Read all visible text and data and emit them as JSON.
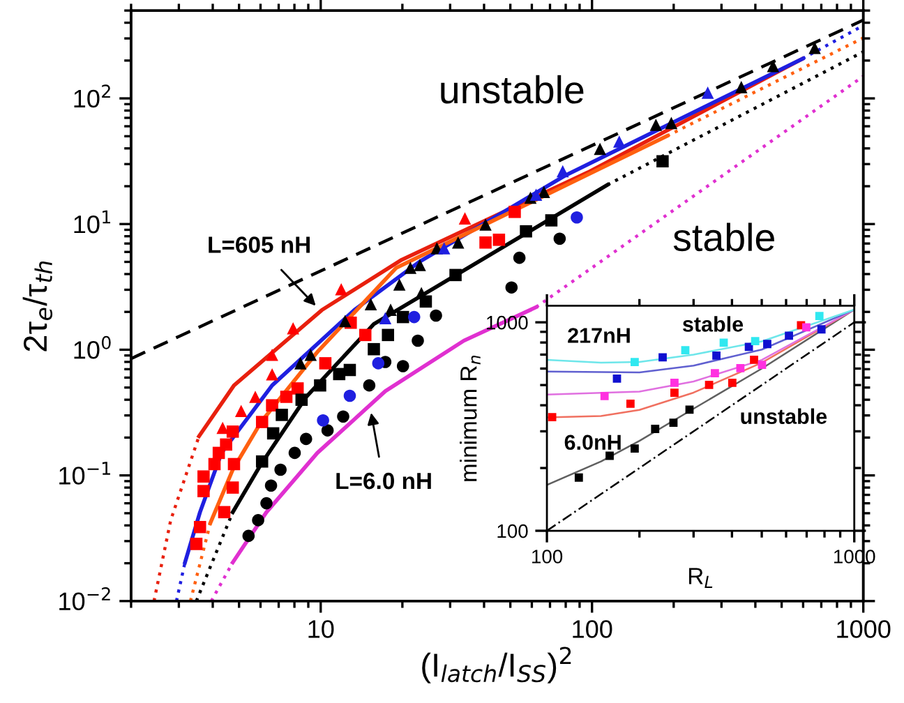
{
  "chart_data": [
    {
      "type": "scatter",
      "xlabel": "(I$_{latch}$/I$_{SS}$)$^{2}$",
      "ylabel": "2τ$_{e}$/τ$_{th}$",
      "log": "xy",
      "xlim": [
        2,
        1000
      ],
      "ylim": [
        0.01,
        500
      ],
      "xticks": [
        10,
        100,
        1000
      ],
      "yticks": [
        {
          "value": 0.01,
          "label": "10$^{−2}$"
        },
        {
          "value": 0.1,
          "label": "10$^{−1}$"
        },
        {
          "value": 1,
          "label": "10$^{0}$"
        },
        {
          "value": 10,
          "label": "10$^{1}$"
        },
        {
          "value": 100,
          "label": "10$^{2}$"
        }
      ],
      "annotations": [
        "unstable",
        "stable",
        {
          "text": "L=605 nH",
          "x": 9.7,
          "y": 2.18
        },
        {
          "text": "L=6.0 nH",
          "x": 15.3,
          "y": 0.326
        }
      ],
      "series": [
        {
          "type": "line",
          "line_style": "dashed",
          "color": "#000000",
          "x": [
            2,
            1000
          ],
          "values": [
            0.85,
            420
          ]
        },
        {
          "type": "line",
          "line_style": "solid",
          "color": "#e8200e",
          "x": [
            3.56,
            4.79,
            10.1,
            19.9,
            96.6,
            597
          ],
          "values": [
            0.205,
            0.52,
            2.07,
            5.2,
            25.8,
            207
          ]
        },
        {
          "type": "line",
          "line_style": "dotted",
          "color": "#e8200e",
          "x": [
            2.43,
            2.8,
            3.56
          ],
          "values": [
            0.01,
            0.044,
            0.205
          ]
        },
        {
          "type": "line",
          "line_style": "solid",
          "color": "#1f1fe0",
          "x": [
            3.16,
            3.59,
            4.31,
            6.62,
            13.3,
            23.0,
            79.8,
            597
          ],
          "values": [
            0.0203,
            0.051,
            0.151,
            0.52,
            2.07,
            4.97,
            24.4,
            207
          ]
        },
        {
          "type": "line",
          "line_style": "dotted",
          "color": "#1f1fe0",
          "x": [
            2.94,
            3.16
          ],
          "values": [
            0.01,
            0.0203
          ]
        },
        {
          "type": "line",
          "line_style": "dotted",
          "color": "#1f1fe0",
          "x": [
            597,
            1000
          ],
          "values": [
            207,
            380
          ]
        },
        {
          "type": "line",
          "line_style": "solid",
          "color": "#ff6010",
          "x": [
            3.92,
            4.74,
            6.03,
            9.72,
            19.0,
            189
          ],
          "values": [
            0.0418,
            0.111,
            0.266,
            0.96,
            4.49,
            50.2
          ]
        },
        {
          "type": "line",
          "line_style": "dotted",
          "color": "#ff6010",
          "x": [
            3.31,
            3.92
          ],
          "values": [
            0.01,
            0.0418
          ]
        },
        {
          "type": "line",
          "line_style": "dotted",
          "color": "#ff6010",
          "x": [
            189,
            1000
          ],
          "values": [
            50.2,
            303
          ]
        },
        {
          "type": "line",
          "line_style": "solid",
          "color": "#000000",
          "x": [
            4.74,
            6.03,
            8.83,
            15.7,
            114
          ],
          "values": [
            0.051,
            0.123,
            0.42,
            1.6,
            20.5
          ]
        },
        {
          "type": "line",
          "line_style": "dotted",
          "color": "#000000",
          "x": [
            3.48,
            4.74
          ],
          "values": [
            0.01,
            0.051
          ]
        },
        {
          "type": "line",
          "line_style": "dotted",
          "color": "#000000",
          "x": [
            114,
            1000
          ],
          "values": [
            20.5,
            235
          ]
        },
        {
          "type": "line",
          "line_style": "solid",
          "color": "#e030d0",
          "x": [
            4.74,
            6.31,
            9.72,
            17.3,
            33.7,
            62.2
          ],
          "values": [
            0.0203,
            0.051,
            0.151,
            0.468,
            1.18,
            2.18
          ]
        },
        {
          "type": "line",
          "line_style": "dotted",
          "color": "#e030d0",
          "x": [
            3.95,
            4.74
          ],
          "values": [
            0.01,
            0.0203
          ]
        },
        {
          "type": "line",
          "line_style": "dotted",
          "color": "#e030d0",
          "x": [
            62.2,
            1000
          ],
          "values": [
            2.18,
            150
          ]
        },
        {
          "type": "scatter",
          "marker": "triangle",
          "color": "#ff0000",
          "x": [
            4.35,
            5.09,
            5.74,
            6.62,
            6.62,
            7.91,
            11.9,
            34.0
          ],
          "values": [
            0.239,
            0.326,
            0.422,
            0.637,
            0.91,
            1.48,
            3.03,
            11.1
          ]
        },
        {
          "type": "scatter",
          "marker": "square",
          "color": "#ff0000",
          "x": [
            3.48,
            3.59,
            3.7,
            3.7,
            4.06,
            4.21,
            4.48,
            4.74,
            4.79,
            4.74,
            4.41,
            6.08,
            6.62,
            7.47,
            8.22,
            10.4,
            12.9,
            14.6,
            40.5,
            45.4,
            51.9
          ],
          "values": [
            0.0285,
            0.0388,
            0.098,
            0.075,
            0.123,
            0.151,
            0.176,
            0.223,
            0.123,
            0.08,
            0.051,
            0.266,
            0.361,
            0.422,
            0.492,
            0.78,
            1.64,
            1.31,
            7.13,
            7.5,
            12.5
          ]
        },
        {
          "type": "scatter",
          "marker": "triangle",
          "color": "#000000",
          "x": [
            8.42,
            9.18,
            12.3,
            15.3,
            18.1,
            19.5,
            21.4,
            23.2,
            26.8,
            23.5,
            32.1,
            40.5,
            59.3,
            66.5,
            107,
            172,
            196,
            355,
            465,
            662
          ],
          "values": [
            0.78,
            0.91,
            1.69,
            2.3,
            2.08,
            3.3,
            4.49,
            4.72,
            6.42,
            2.82,
            7.13,
            9.9,
            16.2,
            18.0,
            39.6,
            61.6,
            63.7,
            123,
            181,
            252
          ]
        },
        {
          "type": "scatter",
          "marker": "triangle",
          "color": "#1f1fe0",
          "x": [
            17.3,
            28.5,
            62.2,
            78.0,
            126,
            267
          ],
          "values": [
            1.78,
            6.42,
            17.1,
            26.3,
            45.3,
            111
          ]
        },
        {
          "type": "scatter",
          "marker": "square",
          "color": "#000000",
          "x": [
            6.08,
            6.68,
            7.19,
            8.5,
            9.95,
            11.7,
            12.8,
            15.7,
            17.7,
            20.1,
            24.4,
            31.4,
            57.1,
            70.8,
            182
          ],
          "values": [
            0.129,
            0.216,
            0.303,
            0.4,
            0.52,
            0.64,
            0.69,
            1.01,
            1.31,
            1.82,
            2.42,
            3.93,
            8.75,
            10.7,
            31.6
          ]
        },
        {
          "type": "scatter",
          "marker": "circle",
          "color": "#000000",
          "x": [
            5.42,
            5.88,
            6.31,
            6.56,
            7.11,
            8.02,
            8.83,
            10.6,
            12.1,
            15.1,
            17.3,
            20.1,
            22.8,
            26.6,
            50.5,
            54.0,
            76.0
          ],
          "values": [
            0.033,
            0.044,
            0.06,
            0.083,
            0.111,
            0.151,
            0.195,
            0.228,
            0.294,
            0.52,
            0.8,
            0.74,
            1.18,
            1.87,
            3.13,
            5.39,
            7.65
          ]
        },
        {
          "type": "scatter",
          "marker": "circle",
          "color": "#1f1fe0",
          "x": [
            10.2,
            12.8,
            16.3,
            22.1,
            87.9
          ],
          "values": [
            0.274,
            0.43,
            0.78,
            1.82,
            11.3
          ]
        }
      ]
    },
    {
      "type": "scatter",
      "xlabel": "R$_{L}$",
      "ylabel": "minimum R$_{n}$",
      "log": "xy",
      "xlim": [
        100,
        1000
      ],
      "ylim": [
        100,
        1200
      ],
      "xticks": [
        100,
        1000
      ],
      "yticks": [
        100,
        1000
      ],
      "annotations": [
        "217nH",
        "stable",
        "unstable",
        "6.0nH"
      ],
      "series": [
        {
          "type": "line",
          "line_style": "dashdot",
          "color": "#000000",
          "x": [
            100,
            1000
          ],
          "values": [
            100,
            1000
          ]
        },
        {
          "type": "line",
          "line_style": "solid",
          "color": "#606060",
          "x": [
            100,
            150,
            200,
            300,
            500,
            1000
          ],
          "values": [
            166,
            215,
            270,
            385,
            600,
            1150
          ]
        },
        {
          "type": "line",
          "line_style": "solid",
          "color": "#f07060",
          "x": [
            100,
            150,
            200,
            300,
            500,
            1000
          ],
          "values": [
            350,
            355,
            380,
            460,
            640,
            1150
          ]
        },
        {
          "type": "line",
          "line_style": "solid",
          "color": "#e070e0",
          "x": [
            100,
            200,
            300,
            500,
            1000
          ],
          "values": [
            450,
            465,
            520,
            660,
            1150
          ]
        },
        {
          "type": "line",
          "line_style": "solid",
          "color": "#6060d0",
          "x": [
            100,
            200,
            300,
            500,
            1000
          ],
          "values": [
            580,
            575,
            620,
            740,
            1150
          ]
        },
        {
          "type": "line",
          "line_style": "solid",
          "color": "#6ee6ea",
          "x": [
            100,
            150,
            200,
            300,
            500,
            1000
          ],
          "values": [
            660,
            640,
            645,
            700,
            810,
            1150
          ]
        },
        {
          "type": "scatter",
          "marker": "square",
          "color": "#000000",
          "x": [
            127,
            160,
            193,
            225,
            258,
            291
          ],
          "values": [
            180,
            229,
            248,
            308,
            330,
            381
          ]
        },
        {
          "type": "scatter",
          "marker": "square",
          "color": "#ff0000",
          "x": [
            104,
            187,
            260,
            337,
            401,
            472,
            671
          ],
          "values": [
            351,
            407,
            459,
            501,
            513,
            661,
            968
          ]
        },
        {
          "type": "scatter",
          "marker": "square",
          "color": "#ff30e0",
          "x": [
            154,
            260,
            352,
            426,
            501,
            698
          ],
          "values": [
            443,
            513,
            570,
            603,
            625,
            946
          ]
        },
        {
          "type": "scatter",
          "marker": "square",
          "color": "#1010d0",
          "x": [
            169,
            238,
            356,
            454,
            521,
            613,
            782
          ],
          "values": [
            537,
            679,
            692,
            762,
            787,
            863,
            925
          ]
        },
        {
          "type": "scatter",
          "marker": "square",
          "color": "#30e8f0",
          "x": [
            193,
            282,
            376,
            476,
            770
          ],
          "values": [
            645,
            735,
            798,
            813,
            1072
          ]
        }
      ]
    }
  ]
}
